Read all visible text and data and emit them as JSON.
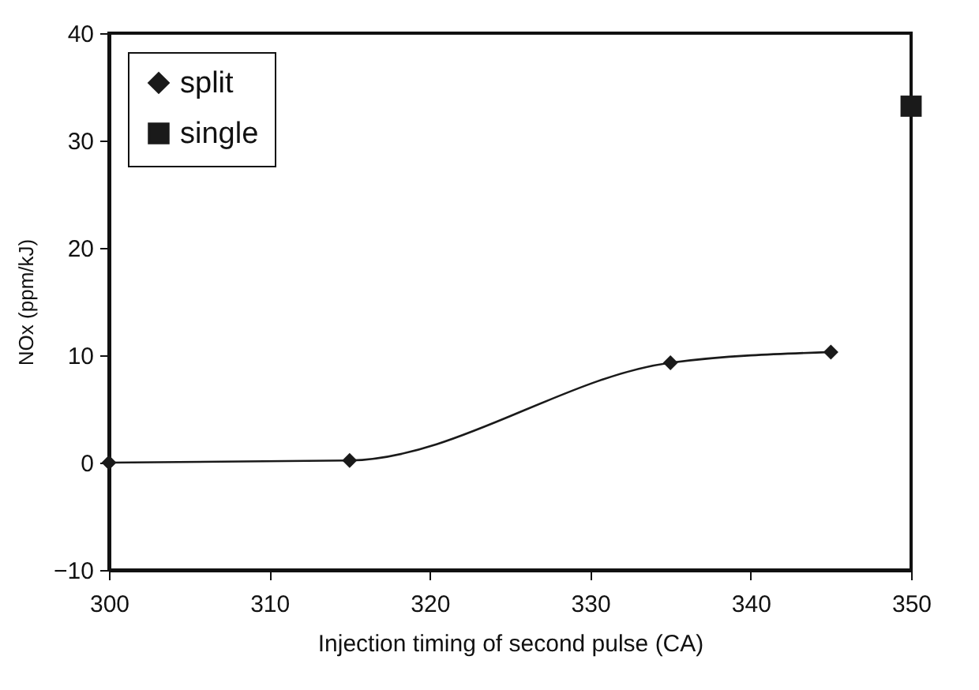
{
  "chart_data": {
    "type": "line",
    "xlabel": "Injection timing of second pulse (CA)",
    "ylabel": "NOx (ppm/kJ)",
    "xlim": [
      300,
      350
    ],
    "xticks": [
      300,
      310,
      320,
      330,
      340,
      350
    ],
    "ylim": [
      -10,
      40
    ],
    "yticks": [
      -10,
      0,
      10,
      20,
      30,
      40
    ],
    "grid": false,
    "legend": "top left",
    "series": [
      {
        "name": "split",
        "marker": "diamond",
        "color": "#1a1a1a",
        "x": [
          300,
          315,
          335,
          345
        ],
        "values": [
          0,
          0.2,
          9.3,
          10.3
        ]
      },
      {
        "name": "single",
        "type": "scatter",
        "marker": "square",
        "color": "#1a1a1a",
        "x": [
          350
        ],
        "values": [
          33.2
        ]
      }
    ]
  }
}
